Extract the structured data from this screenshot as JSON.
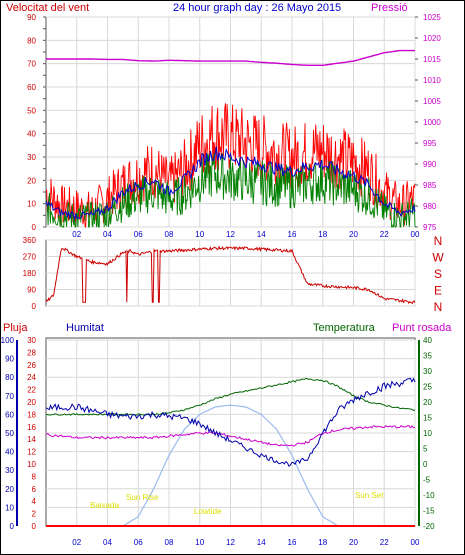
{
  "header": {
    "left_title": "Velocitat del vent",
    "center_title": "24 hour graph day : 26 Mayo 2015",
    "right_title": "Pressió"
  },
  "wind_panel": {
    "left_ticks": [
      0,
      5,
      10,
      15,
      20,
      25,
      30,
      35,
      40,
      45,
      50,
      55,
      60,
      65,
      70,
      75,
      80,
      85,
      90
    ],
    "right_ticks": [
      975,
      980,
      985,
      990,
      995,
      1000,
      1005,
      1010,
      1015,
      1020,
      1025
    ],
    "x_ticks": [
      "02",
      "04",
      "06",
      "08",
      "10",
      "12",
      "14",
      "16",
      "18",
      "20",
      "22",
      "00"
    ]
  },
  "direction_panel": {
    "left_ticks": [
      0,
      90,
      180,
      270,
      360
    ],
    "compass_labels": [
      "N",
      "W",
      "S",
      "E",
      "N"
    ]
  },
  "bottom_panel": {
    "header_left": "Pluja",
    "header_humidity": "Humitat",
    "header_temperature": "Temperatura",
    "header_dewpoint": "Punt rosada",
    "rain_ticks": [
      0,
      2,
      4,
      6,
      8,
      10,
      12,
      14,
      16,
      18,
      20,
      22,
      24,
      26,
      28,
      30
    ],
    "humidity_ticks": [
      0,
      10,
      20,
      30,
      40,
      50,
      60,
      70,
      80,
      90,
      100
    ],
    "temperature_ticks": [
      -20,
      -15,
      -10,
      -5,
      0,
      5,
      10,
      15,
      20,
      25,
      30,
      35,
      40
    ],
    "x_ticks": [
      "02",
      "04",
      "06",
      "08",
      "10",
      "12",
      "14",
      "16",
      "18",
      "20",
      "22",
      "00"
    ],
    "annotations": {
      "high_tide": "Baixada",
      "sun_rise": "Sun Rise",
      "low_tide": "Lowtide",
      "sun_set": "Sun Set"
    }
  },
  "chart_data": [
    {
      "type": "line",
      "title": "24 hour graph day : 26 Mayo 2015",
      "xlabel": "",
      "ylabel": "Velocitat del vent",
      "y2label": "Pressió",
      "x": [
        0,
        1,
        2,
        3,
        4,
        5,
        6,
        7,
        8,
        9,
        10,
        11,
        12,
        13,
        14,
        15,
        16,
        17,
        18,
        19,
        20,
        21,
        22,
        23,
        24
      ],
      "ylim": [
        0,
        90
      ],
      "y2lim": [
        975,
        1025
      ],
      "series": [
        {
          "name": "gust",
          "color": "#ff0000",
          "values": [
            15,
            9,
            8,
            7,
            12,
            18,
            22,
            25,
            18,
            25,
            35,
            40,
            38,
            36,
            34,
            32,
            30,
            32,
            33,
            30,
            28,
            24,
            15,
            9,
            12
          ]
        },
        {
          "name": "average",
          "color": "#0000cc",
          "values": [
            10,
            6,
            5,
            5,
            8,
            15,
            18,
            20,
            15,
            20,
            28,
            32,
            30,
            28,
            27,
            25,
            24,
            26,
            27,
            24,
            22,
            18,
            10,
            6,
            8
          ]
        },
        {
          "name": "speed",
          "color": "#008000",
          "values": [
            8,
            5,
            4,
            4,
            6,
            10,
            13,
            15,
            12,
            14,
            20,
            23,
            21,
            20,
            19,
            18,
            17,
            19,
            20,
            18,
            16,
            13,
            7,
            4,
            6
          ]
        },
        {
          "name": "pressure",
          "axis": "right",
          "color": "#cc00cc",
          "values": [
            1015,
            1015,
            1015,
            1015,
            1014.9,
            1014.9,
            1014.6,
            1014.5,
            1014.7,
            1014.6,
            1014.5,
            1014.5,
            1014.5,
            1014.5,
            1014.2,
            1014.0,
            1013.7,
            1013.5,
            1013.5,
            1014.0,
            1014.5,
            1015.5,
            1016.5,
            1017.0,
            1017.0
          ]
        }
      ]
    },
    {
      "type": "line",
      "title": "",
      "ylabel": "",
      "x": [
        0,
        0.5,
        1,
        2,
        3,
        4,
        5,
        5.5,
        6,
        7,
        8,
        9,
        10,
        11,
        12,
        13,
        14,
        15,
        16,
        17,
        18,
        19,
        20,
        21,
        22,
        23,
        24
      ],
      "ylim": [
        0,
        360
      ],
      "series": [
        {
          "name": "direction",
          "color": "#cc0000",
          "values": [
            20,
            60,
            320,
            270,
            240,
            230,
            290,
            300,
            280,
            300,
            300,
            305,
            310,
            315,
            315,
            315,
            310,
            305,
            300,
            120,
            110,
            105,
            100,
            90,
            40,
            30,
            20
          ]
        }
      ]
    },
    {
      "type": "line",
      "title": "",
      "x": [
        0,
        1,
        2,
        3,
        4,
        5,
        6,
        7,
        8,
        9,
        10,
        11,
        12,
        13,
        14,
        15,
        16,
        17,
        18,
        19,
        20,
        21,
        22,
        23,
        24
      ],
      "series": [
        {
          "name": "Humitat",
          "axis": "humidity",
          "ylim": [
            0,
            100
          ],
          "color": "#0000aa",
          "values": [
            63,
            64,
            64,
            62,
            60,
            59,
            59,
            60,
            59,
            58,
            55,
            50,
            46,
            42,
            38,
            35,
            33,
            36,
            50,
            62,
            68,
            72,
            75,
            77,
            78
          ]
        },
        {
          "name": "Temperatura",
          "axis": "temperature",
          "ylim": [
            -20,
            40
          ],
          "color": "#006600",
          "values": [
            16,
            16,
            16,
            16,
            16,
            16,
            16,
            16,
            16.5,
            17.5,
            19,
            21,
            22.5,
            23.5,
            24.5,
            25.5,
            26.5,
            27.5,
            27,
            25,
            22,
            20,
            19,
            18,
            17.5
          ]
        },
        {
          "name": "Punt rosada",
          "axis": "temperature",
          "ylim": [
            -20,
            40
          ],
          "color": "#cc00cc",
          "values": [
            9.5,
            9,
            8.5,
            8.5,
            8.5,
            8.5,
            8.5,
            8.5,
            9,
            9.5,
            10,
            10,
            9,
            8,
            7,
            6,
            6,
            7,
            10,
            11,
            11.5,
            12,
            12,
            12,
            12
          ]
        },
        {
          "name": "solar",
          "axis": "humidity",
          "ylim": [
            0,
            100
          ],
          "color": "#99bbee",
          "values": [
            0,
            0,
            0,
            0,
            0,
            0,
            5,
            20,
            38,
            52,
            60,
            64,
            65,
            64,
            60,
            52,
            38,
            20,
            5,
            0,
            0,
            0,
            0,
            0,
            0
          ]
        },
        {
          "name": "Pluja",
          "axis": "rain",
          "ylim": [
            0,
            30
          ],
          "color": "#ff0000",
          "values": [
            0,
            0,
            0,
            0,
            0,
            0,
            0,
            0,
            0,
            0,
            0,
            0,
            0,
            0,
            0,
            0,
            0,
            0,
            0,
            0,
            0,
            0,
            0,
            0,
            0
          ]
        }
      ]
    }
  ]
}
